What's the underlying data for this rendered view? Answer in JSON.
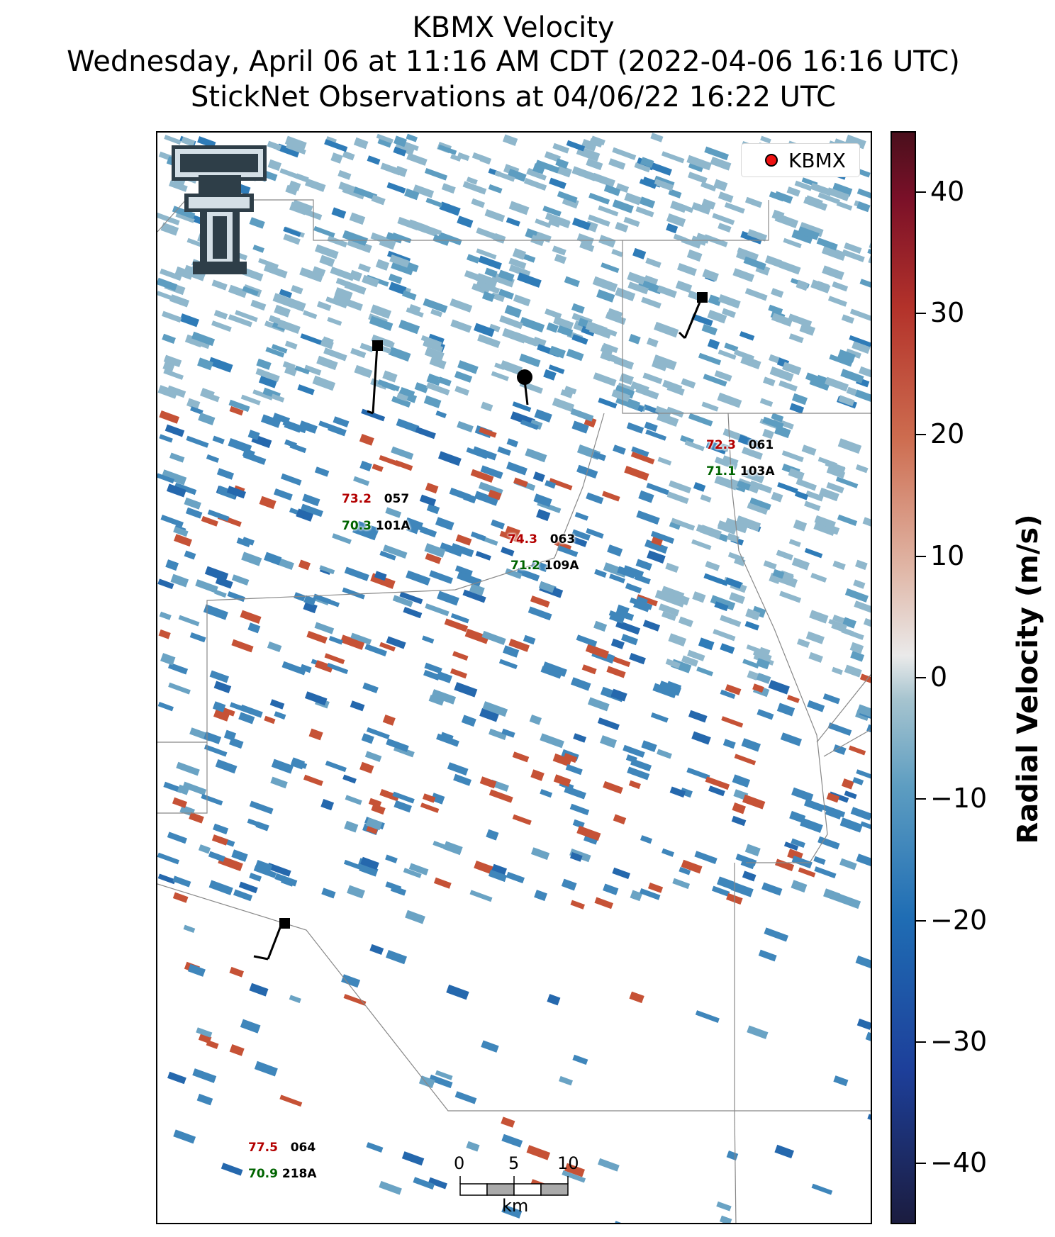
{
  "title": {
    "line1": "KBMX Velocity",
    "line2": "Wednesday, April 06 at 11:16 AM CDT (2022-04-06 16:16 UTC)",
    "line3": "StickNet Observations at 04/06/22 16:22 UTC"
  },
  "legend": {
    "label": "KBMX",
    "marker_color": "#ee1111"
  },
  "colorbar": {
    "label": "Radial Velocity (m/s)",
    "ticks": [
      "40",
      "30",
      "20",
      "10",
      "0",
      "−10",
      "−20",
      "−30",
      "−40"
    ],
    "range": [
      -45,
      45
    ],
    "colors": {
      "negative": "#1f6db4",
      "zero": "#eaeaea",
      "positive": "#b3322a"
    }
  },
  "stations": [
    {
      "temp": "73.2",
      "dew": "70.3",
      "id": "057",
      "name": "101A",
      "marker": "square"
    },
    {
      "temp": "74.3",
      "dew": "71.2",
      "id": "063",
      "name": "109A",
      "marker": "circle"
    },
    {
      "temp": "72.3",
      "dew": "71.1",
      "id": "061",
      "name": "103A",
      "marker": "square"
    },
    {
      "temp": "77.5",
      "dew": "70.9",
      "id": "064",
      "name": "218A",
      "marker": "square"
    }
  ],
  "scalebar": {
    "ticks": [
      "0",
      "5",
      "10"
    ],
    "unit": "km"
  },
  "logo": {
    "icon": "double-t-logo"
  }
}
